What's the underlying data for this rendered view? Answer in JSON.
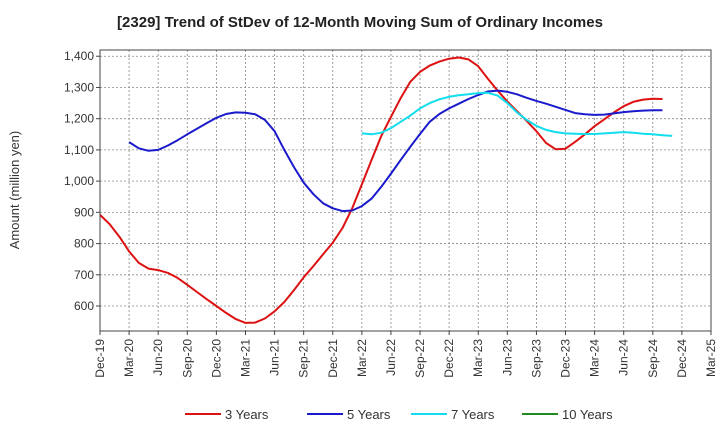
{
  "chart_data": {
    "type": "line",
    "title": "[2329]  Trend of StDev of 12-Month Moving Sum of Ordinary Incomes",
    "xlabel": "",
    "ylabel": "Amount (million yen)",
    "ylim": [
      520,
      1420
    ],
    "yticks": [
      600,
      700,
      800,
      900,
      1000,
      1100,
      1200,
      1300,
      1400
    ],
    "ytick_labels": [
      "600",
      "700",
      "800",
      "900",
      "1,000",
      "1,100",
      "1,200",
      "1,300",
      "1,400"
    ],
    "x_start": "Dec-19",
    "xtick_labels": [
      "Dec-19",
      "Mar-20",
      "Jun-20",
      "Sep-20",
      "Dec-20",
      "Mar-21",
      "Jun-21",
      "Sep-21",
      "Dec-21",
      "Mar-22",
      "Jun-22",
      "Sep-22",
      "Dec-22",
      "Mar-23",
      "Jun-23",
      "Sep-23",
      "Dec-23",
      "Mar-24",
      "Jun-24",
      "Sep-24",
      "Dec-24",
      "Mar-25"
    ],
    "grid": true,
    "legend_position": "bottom",
    "series": [
      {
        "name": "3 Years",
        "color": "#dd1111",
        "start_index": 0,
        "values": [
          892,
          862,
          822,
          775,
          738,
          720,
          715,
          706,
          690,
          668,
          645,
          622,
          600,
          578,
          558,
          546,
          547,
          560,
          583,
          613,
          651,
          692,
          728,
          766,
          803,
          850,
          913,
          990,
          1068,
          1145,
          1206,
          1266,
          1318,
          1350,
          1370,
          1383,
          1392,
          1396,
          1390,
          1368,
          1328,
          1290,
          1255,
          1224,
          1193,
          1160,
          1122,
          1102,
          1104,
          1126,
          1150,
          1176,
          1198,
          1220,
          1240,
          1254,
          1261,
          1264,
          1263
        ]
      },
      {
        "name": "5 Years",
        "color": "#1a1acc",
        "start_index": 3,
        "values": [
          1125,
          1105,
          1097,
          1100,
          1114,
          1131,
          1150,
          1168,
          1186,
          1203,
          1215,
          1220,
          1219,
          1214,
          1196,
          1160,
          1100,
          1045,
          995,
          958,
          929,
          913,
          904,
          906,
          920,
          944,
          982,
          1024,
          1068,
          1110,
          1151,
          1190,
          1215,
          1233,
          1248,
          1263,
          1276,
          1287,
          1290,
          1286,
          1278,
          1267,
          1257,
          1248,
          1238,
          1228,
          1218,
          1214,
          1212,
          1213,
          1217,
          1221,
          1224,
          1226,
          1227,
          1227
        ]
      },
      {
        "name": "7 Years",
        "color": "#11ddee",
        "start_index": 27,
        "values": [
          1153,
          1150,
          1155,
          1170,
          1190,
          1210,
          1233,
          1250,
          1262,
          1270,
          1275,
          1278,
          1282,
          1283,
          1274,
          1250,
          1220,
          1196,
          1177,
          1164,
          1157,
          1153,
          1152,
          1151,
          1151,
          1153,
          1155,
          1157,
          1155,
          1152,
          1150,
          1147,
          1145
        ]
      },
      {
        "name": "10 Years",
        "color": "#228822",
        "start_index": 0,
        "values": []
      }
    ]
  }
}
